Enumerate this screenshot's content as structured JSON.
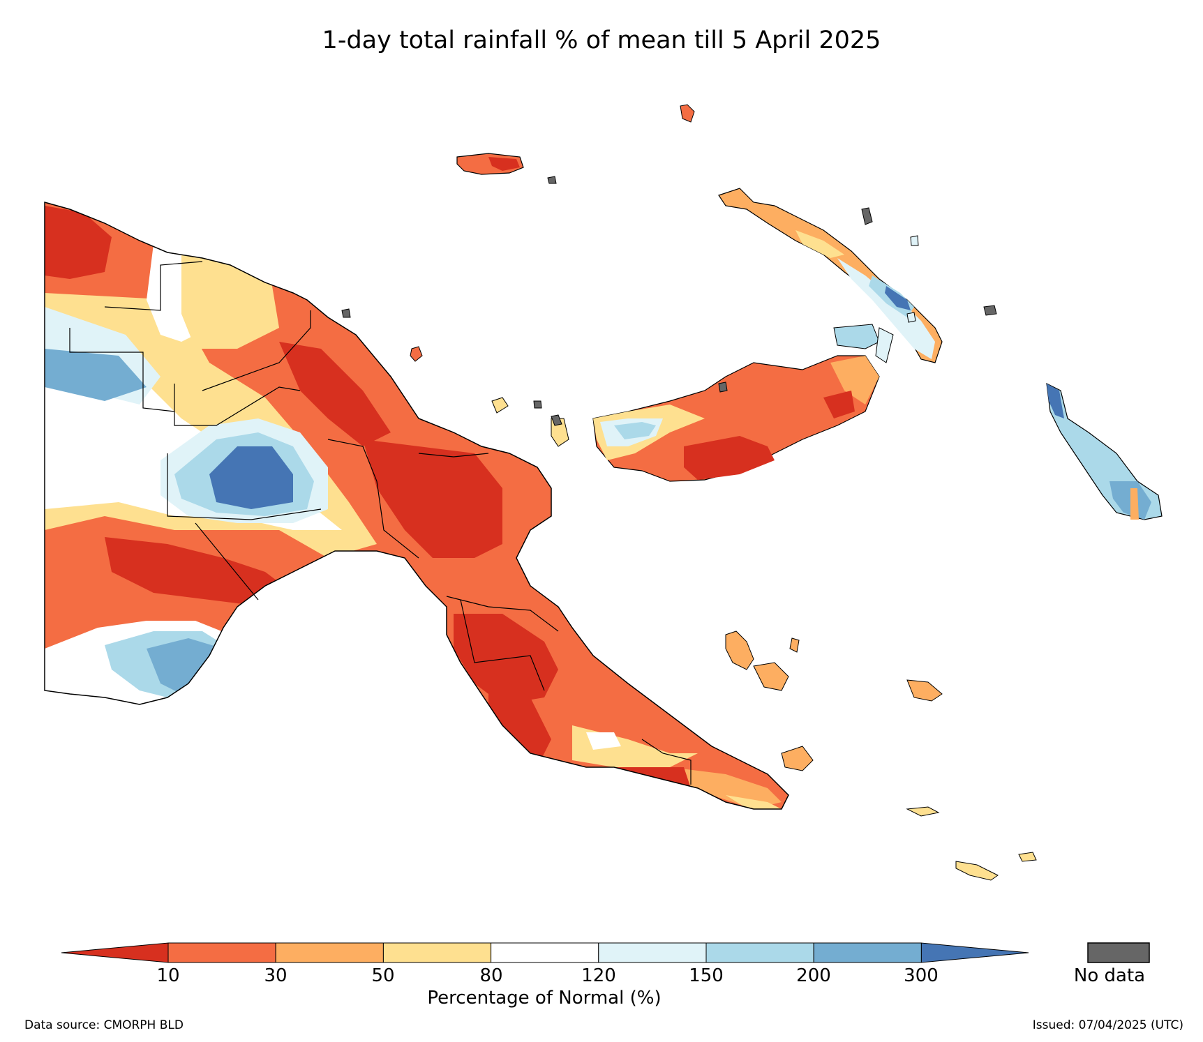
{
  "title": "1-day total rainfall % of mean till 5 April 2025",
  "colorbar": {
    "label": "Percentage of Normal (%)",
    "ticks": [
      "10",
      "30",
      "50",
      "80",
      "120",
      "150",
      "200",
      "300"
    ],
    "colors": [
      "#d7301f",
      "#f46d43",
      "#fdae61",
      "#fee090",
      "#ffffff",
      "#e0f3f8",
      "#abd9e9",
      "#74add1",
      "#4575b4"
    ],
    "nodata_color": "#666666",
    "nodata_label": "No data"
  },
  "source": "Data source: CMORPH BLD",
  "issued": "Issued: 07/04/2025 (UTC)"
}
